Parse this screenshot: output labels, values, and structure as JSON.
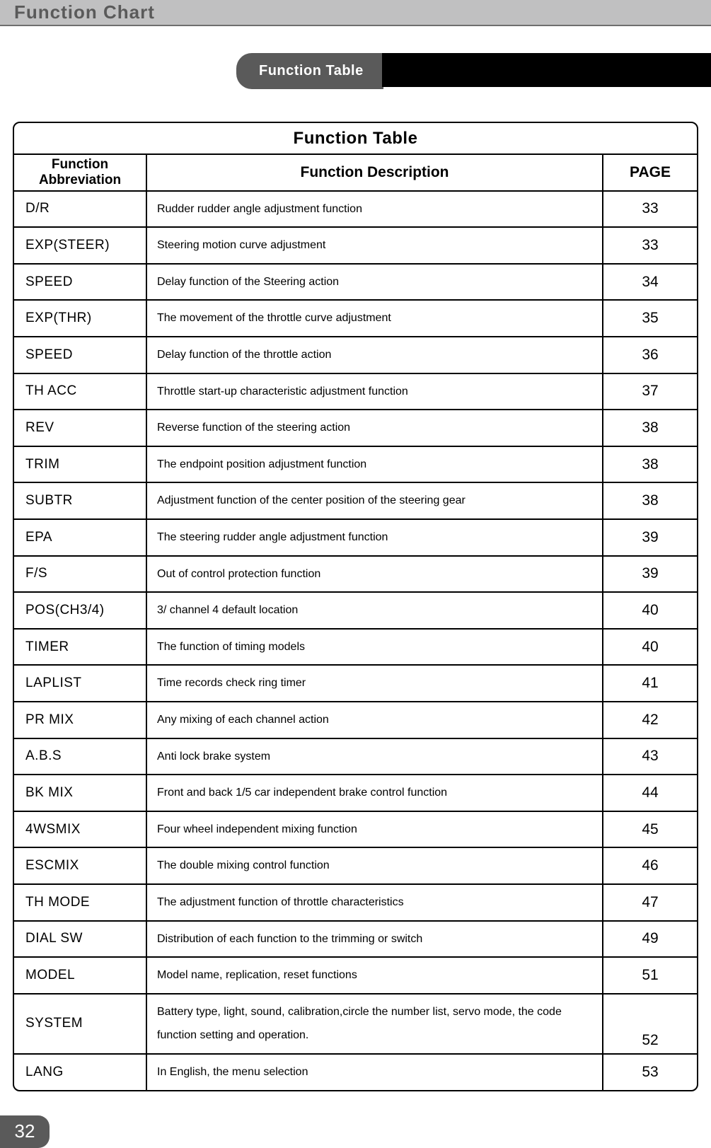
{
  "header": {
    "title": "Function Chart"
  },
  "tab": {
    "label": "Function Table"
  },
  "table": {
    "title": "Function Table",
    "columns": {
      "abbr": "Function Abbreviation",
      "desc": "Function Description",
      "page": "PAGE"
    },
    "rows": [
      {
        "abbr": "D/R",
        "desc": "Rudder rudder angle adjustment function",
        "page": "33"
      },
      {
        "abbr": "EXP(STEER)",
        "desc": "Steering motion curve adjustment",
        "page": "33"
      },
      {
        "abbr": "SPEED",
        "desc": "Delay function of the Steering action",
        "page": "34"
      },
      {
        "abbr": "EXP(THR)",
        "desc": "The movement of the throttle curve adjustment",
        "page": "35"
      },
      {
        "abbr": "SPEED",
        "desc": "Delay function of the throttle action",
        "page": "36"
      },
      {
        "abbr": "TH ACC",
        "desc": "Throttle start-up characteristic adjustment function",
        "page": "37"
      },
      {
        "abbr": "REV",
        "desc": "Reverse function of the steering action",
        "page": "38"
      },
      {
        "abbr": "TRIM",
        "desc": "The endpoint position adjustment function",
        "page": "38"
      },
      {
        "abbr": "SUBTR",
        "desc": "Adjustment function of the center position of the steering gear",
        "page": "38"
      },
      {
        "abbr": "EPA",
        "desc": "The steering rudder angle adjustment function",
        "page": "39"
      },
      {
        "abbr": "F/S",
        "desc": "Out of control protection function",
        "page": "39"
      },
      {
        "abbr": "POS(CH3/4)",
        "desc": "3/ channel 4 default location",
        "page": "40"
      },
      {
        "abbr": "TIMER",
        "desc": "The function of timing models",
        "page": "40"
      },
      {
        "abbr": "LAPLIST",
        "desc": "Time records check ring timer",
        "page": "41"
      },
      {
        "abbr": "PR MIX",
        "desc": "Any mixing of each channel action",
        "page": "42"
      },
      {
        "abbr": "A.B.S",
        "desc": "Anti lock brake system",
        "page": "43"
      },
      {
        "abbr": "BK MIX",
        "desc": "Front and back  1/5 car independent brake control function",
        "page": "44"
      },
      {
        "abbr": "4WSMIX",
        "desc": "Four wheel independent mixing function",
        "page": "45"
      },
      {
        "abbr": "ESCMIX",
        "desc": "The double mixing control function",
        "page": "46"
      },
      {
        "abbr": "TH MODE",
        "desc": "The adjustment function of throttle characteristics",
        "page": "47"
      },
      {
        "abbr": "DIAL SW",
        "desc": "Distribution of each function to the trimming or switch",
        "page": "49"
      },
      {
        "abbr": "MODEL",
        "desc": "Model name, replication, reset functions",
        "page": "51"
      },
      {
        "abbr": "SYSTEM",
        "desc": "Battery type, light, sound, calibration,circle the number list, servo mode, the code function setting and operation.",
        "page": "52"
      },
      {
        "abbr": "LANG",
        "desc": "In English, the menu selection",
        "page": "53"
      }
    ]
  },
  "page_number": "32",
  "colors": {
    "header_bg": "#c0c0c1",
    "header_text": "#5a5a5a",
    "tab_bg": "#5a5a5a",
    "tab_ext_bg": "#000000",
    "border": "#000000",
    "body_bg": "#ffffff"
  }
}
